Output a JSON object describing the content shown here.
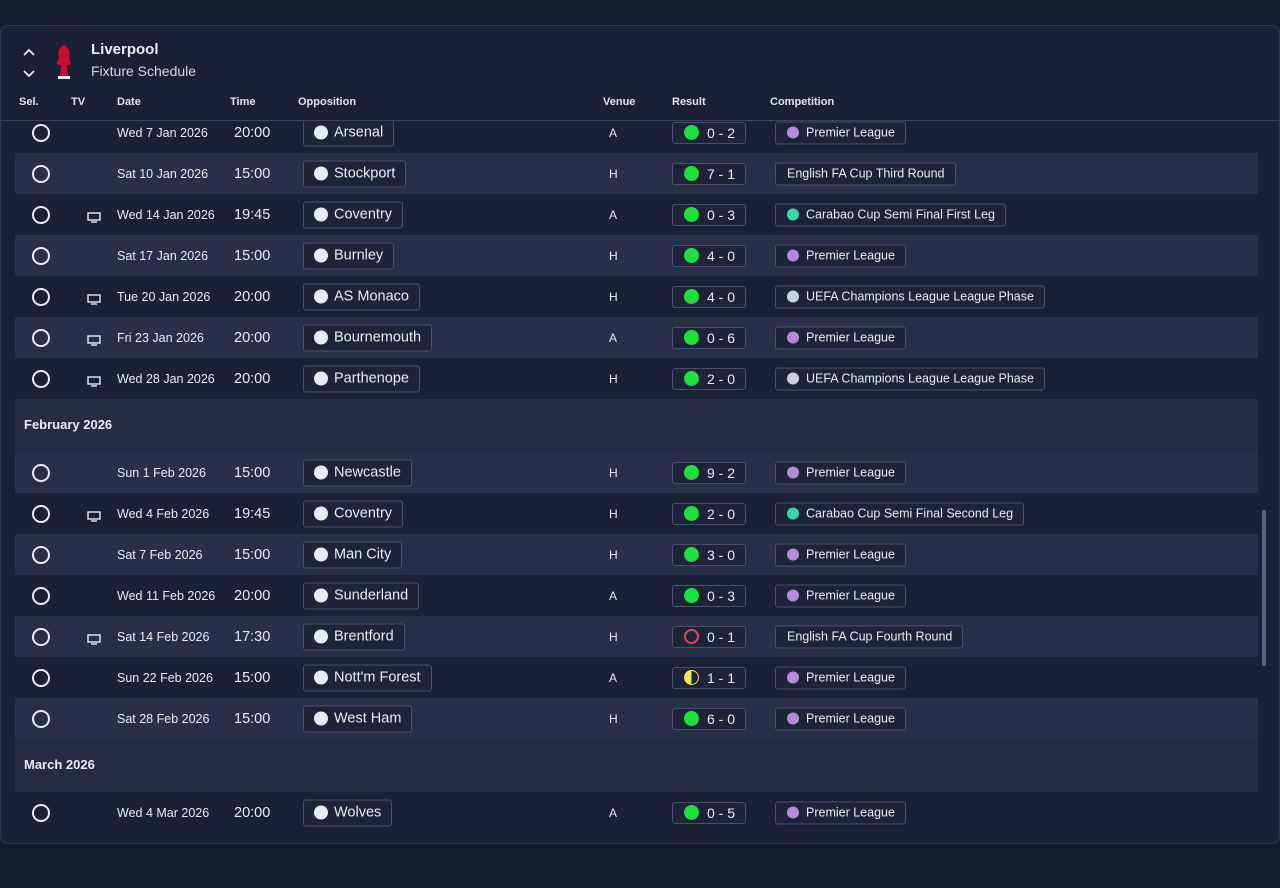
{
  "header": {
    "title": "Liverpool",
    "subtitle": "Fixture Schedule"
  },
  "columns": [
    "Sel.",
    "TV",
    "Date",
    "Time",
    "Opposition",
    "Venue",
    "Result",
    "Competition"
  ],
  "sections": [
    {
      "heading": null,
      "rows": [
        {
          "tv": false,
          "date": "Wed 7 Jan 2026",
          "time": "20:00",
          "opposition": "Arsenal",
          "venue": "A",
          "result": "0 - 2",
          "outcome": "win",
          "competition": "Premier League"
        },
        {
          "tv": false,
          "date": "Sat 10 Jan 2026",
          "time": "15:00",
          "opposition": "Stockport",
          "venue": "H",
          "result": "7 - 1",
          "outcome": "win",
          "competition": "English FA Cup Third Round"
        },
        {
          "tv": true,
          "date": "Wed 14 Jan 2026",
          "time": "19:45",
          "opposition": "Coventry",
          "venue": "A",
          "result": "0 - 3",
          "outcome": "win",
          "competition": "Carabao Cup Semi Final First Leg"
        },
        {
          "tv": false,
          "date": "Sat 17 Jan 2026",
          "time": "15:00",
          "opposition": "Burnley",
          "venue": "H",
          "result": "4 - 0",
          "outcome": "win",
          "competition": "Premier League"
        },
        {
          "tv": true,
          "date": "Tue 20 Jan 2026",
          "time": "20:00",
          "opposition": "AS Monaco",
          "venue": "H",
          "result": "4 - 0",
          "outcome": "win",
          "competition": "UEFA Champions League League Phase"
        },
        {
          "tv": true,
          "date": "Fri 23 Jan 2026",
          "time": "20:00",
          "opposition": "Bournemouth",
          "venue": "A",
          "result": "0 - 6",
          "outcome": "win",
          "competition": "Premier League"
        },
        {
          "tv": true,
          "date": "Wed 28 Jan 2026",
          "time": "20:00",
          "opposition": "Parthenope",
          "venue": "H",
          "result": "2 - 0",
          "outcome": "win",
          "competition": "UEFA Champions League League Phase"
        }
      ]
    },
    {
      "heading": "February 2026",
      "rows": [
        {
          "tv": false,
          "date": "Sun 1 Feb 2026",
          "time": "15:00",
          "opposition": "Newcastle",
          "venue": "H",
          "result": "9 - 2",
          "outcome": "win",
          "competition": "Premier League"
        },
        {
          "tv": true,
          "date": "Wed 4 Feb 2026",
          "time": "19:45",
          "opposition": "Coventry",
          "venue": "H",
          "result": "2 - 0",
          "outcome": "win",
          "competition": "Carabao Cup Semi Final Second Leg"
        },
        {
          "tv": false,
          "date": "Sat 7 Feb 2026",
          "time": "15:00",
          "opposition": "Man City",
          "venue": "H",
          "result": "3 - 0",
          "outcome": "win",
          "competition": "Premier League"
        },
        {
          "tv": false,
          "date": "Wed 11 Feb 2026",
          "time": "20:00",
          "opposition": "Sunderland",
          "venue": "A",
          "result": "0 - 3",
          "outcome": "win",
          "competition": "Premier League"
        },
        {
          "tv": true,
          "date": "Sat 14 Feb 2026",
          "time": "17:30",
          "opposition": "Brentford",
          "venue": "H",
          "result": "0 - 1",
          "outcome": "loss",
          "competition": "English FA Cup Fourth Round"
        },
        {
          "tv": false,
          "date": "Sun 22 Feb 2026",
          "time": "15:00",
          "opposition": "Nott'm Forest",
          "venue": "A",
          "result": "1 - 1",
          "outcome": "draw",
          "competition": "Premier League"
        },
        {
          "tv": false,
          "date": "Sat 28 Feb 2026",
          "time": "15:00",
          "opposition": "West Ham",
          "venue": "H",
          "result": "6 - 0",
          "outcome": "win",
          "competition": "Premier League"
        }
      ]
    },
    {
      "heading": "March 2026",
      "rows": [
        {
          "tv": false,
          "date": "Wed 4 Mar 2026",
          "time": "20:00",
          "opposition": "Wolves",
          "venue": "A",
          "result": "0 - 5",
          "outcome": "win",
          "competition": "Premier League"
        }
      ]
    }
  ]
}
